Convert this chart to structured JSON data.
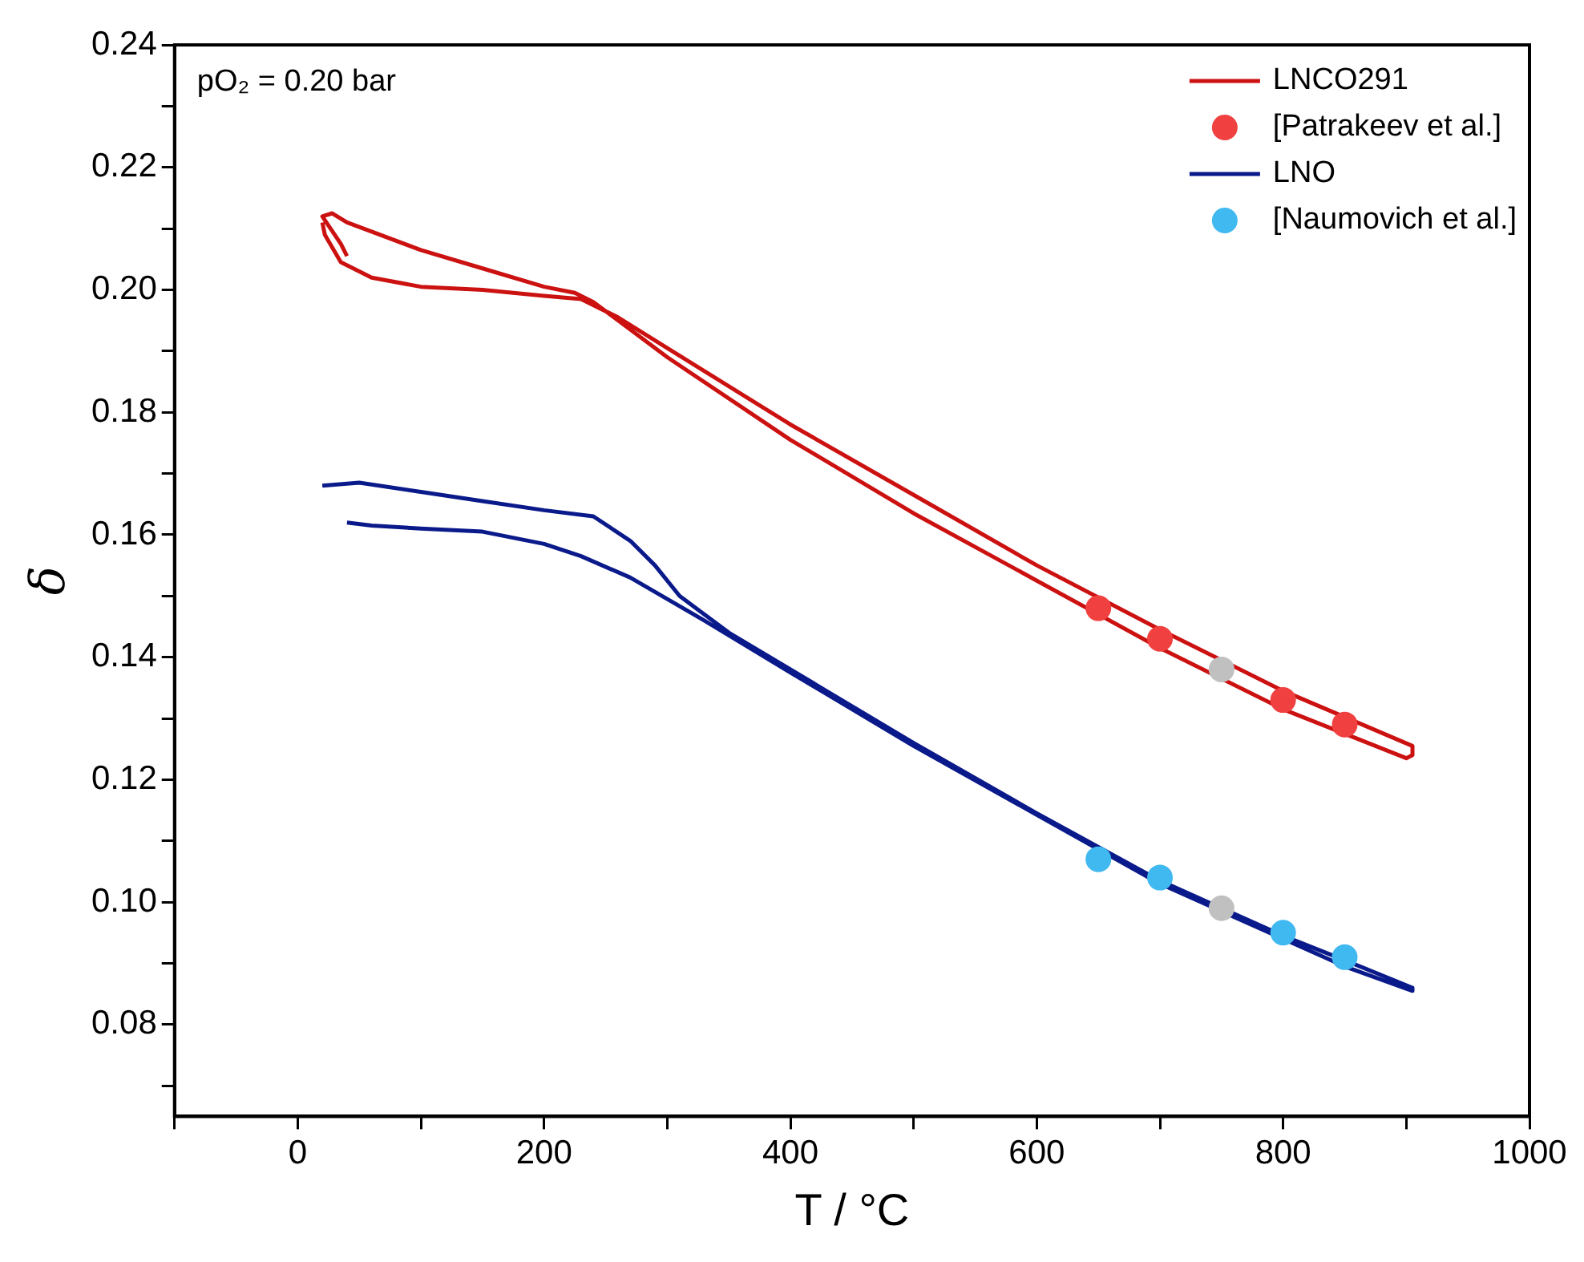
{
  "chart_data": {
    "type": "line",
    "xlabel": "T / °C",
    "ylabel": "δ",
    "annotations": [
      "pO₂ = 0.20 bar"
    ],
    "xlim": [
      -100,
      1000
    ],
    "xticks": [
      {
        "value": -100,
        "label": null
      },
      0,
      {
        "value": 100,
        "label": null
      },
      200,
      {
        "value": 300,
        "label": null
      },
      400,
      {
        "value": 500,
        "label": null
      },
      600,
      {
        "value": 700,
        "label": null
      },
      800,
      {
        "value": 900,
        "label": null
      },
      1000
    ],
    "ylim": [
      0.065,
      0.24
    ],
    "yticks": [
      {
        "value": 0.07,
        "label": null
      },
      0.08,
      {
        "value": 0.09,
        "label": null
      },
      {
        "value": 0.1,
        "label": "0.10"
      },
      {
        "value": 0.11,
        "label": null
      },
      0.12,
      {
        "value": 0.13,
        "label": null
      },
      0.14,
      {
        "value": 0.15,
        "label": null
      },
      0.16,
      {
        "value": 0.17,
        "label": null
      },
      0.18,
      {
        "value": 0.19,
        "label": null
      },
      {
        "value": 0.2,
        "label": "0.20"
      },
      {
        "value": 0.21,
        "label": null
      },
      0.22,
      {
        "value": 0.23,
        "label": null
      },
      0.24
    ],
    "grid": false,
    "legend": "top right",
    "marker": "circle",
    "line_style": "solid",
    "series": [
      {
        "name": "LNCO291",
        "marker": "none",
        "color": "#cc1111",
        "x": [
          40,
          35,
          25,
          20,
          28,
          40,
          60,
          100,
          150,
          200,
          225,
          240,
          270,
          300,
          400,
          500,
          600,
          700,
          800,
          900,
          905,
          905,
          800,
          700,
          600,
          500,
          400,
          300,
          260,
          230,
          200,
          150,
          100,
          60,
          35,
          22,
          20
        ],
        "values": [
          0.2055,
          0.2075,
          0.2105,
          0.212,
          0.2125,
          0.211,
          0.2095,
          0.2065,
          0.2035,
          0.2005,
          0.1995,
          0.198,
          0.1935,
          0.189,
          0.1755,
          0.1635,
          0.1525,
          0.1415,
          0.1315,
          0.1235,
          0.124,
          0.1255,
          0.1345,
          0.1445,
          0.155,
          0.1665,
          0.178,
          0.1905,
          0.1955,
          0.1985,
          0.199,
          0.2,
          0.2005,
          0.202,
          0.2045,
          0.209,
          0.211
        ]
      },
      {
        "name": "[Patrakeev et al.]",
        "type": "scatter",
        "color": "#f04040",
        "x": [
          650,
          700,
          800,
          850
        ],
        "values": [
          0.148,
          0.143,
          0.133,
          0.129
        ]
      },
      {
        "name": "LNO",
        "marker": "none",
        "color": "#0a1a8a",
        "x": [
          20,
          50,
          100,
          150,
          200,
          240,
          270,
          290,
          310,
          350,
          400,
          500,
          600,
          700,
          800,
          850,
          905,
          905,
          850,
          700,
          500,
          400,
          330,
          300,
          270,
          230,
          200,
          150,
          100,
          60,
          40
        ],
        "values": [
          0.168,
          0.1685,
          0.167,
          0.1655,
          0.164,
          0.163,
          0.159,
          0.155,
          0.15,
          0.144,
          0.138,
          0.126,
          0.1145,
          0.1035,
          0.0945,
          0.0905,
          0.086,
          0.0855,
          0.0895,
          0.103,
          0.1255,
          0.1375,
          0.146,
          0.1495,
          0.153,
          0.1565,
          0.1585,
          0.1605,
          0.161,
          0.1615,
          0.162
        ]
      },
      {
        "name": "[Naumovich et al.]",
        "type": "scatter",
        "color": "#40b8f0",
        "x": [
          650,
          700,
          800,
          850
        ],
        "values": [
          0.107,
          0.104,
          0.095,
          0.091
        ]
      },
      {
        "type": "scatter",
        "color": "#c0c0c0",
        "x": [
          750,
          750
        ],
        "values": [
          0.138,
          0.099
        ]
      }
    ]
  }
}
